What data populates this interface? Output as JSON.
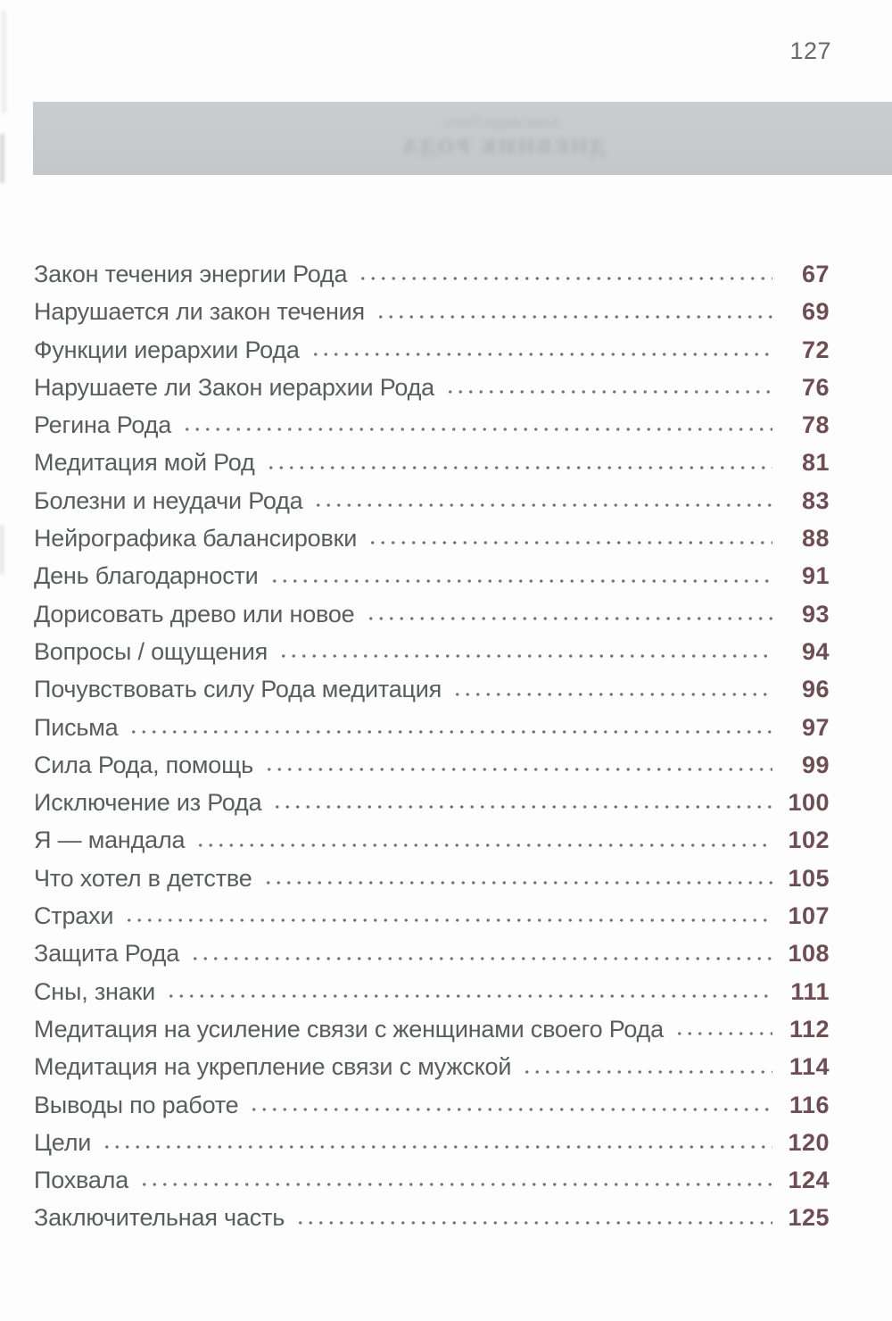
{
  "page": {
    "header_page_number": "127"
  },
  "banner": {
    "ghost_line1": "Александра Гонта",
    "ghost_line2": "ДНЕВНИК РОДА"
  },
  "toc": {
    "entries": [
      {
        "title": "Закон течения энергии Рода",
        "page": "67"
      },
      {
        "title": "Нарушается ли закон течения",
        "page": "69"
      },
      {
        "title": "Функции иерархии Рода",
        "page": "72"
      },
      {
        "title": "Нарушаете ли Закон иерархии Рода",
        "page": "76"
      },
      {
        "title": "Регина Рода",
        "page": "78"
      },
      {
        "title": "Медитация мой Род",
        "page": "81"
      },
      {
        "title": "Болезни и неудачи Рода",
        "page": "83"
      },
      {
        "title": "Нейрографика балансировки",
        "page": "88"
      },
      {
        "title": "День благодарности",
        "page": "91"
      },
      {
        "title": "Дорисовать древо или новое",
        "page": "93"
      },
      {
        "title": "Вопросы / ощущения",
        "page": "94"
      },
      {
        "title": "Почувствовать силу Рода медитация",
        "page": "96"
      },
      {
        "title": "Письма",
        "page": "97"
      },
      {
        "title": "Сила Рода, помощь",
        "page": "99"
      },
      {
        "title": "Исключение из Рода",
        "page": "100"
      },
      {
        "title": "Я — мандала",
        "page": "102"
      },
      {
        "title": "Что хотел в детстве",
        "page": "105"
      },
      {
        "title": "Страхи",
        "page": "107"
      },
      {
        "title": "Защита Рода",
        "page": "108"
      },
      {
        "title": "Сны, знаки",
        "page": "111"
      },
      {
        "title": "Медитация на усиление связи с женщинами своего Рода",
        "page": "112"
      },
      {
        "title": "Медитация на укрепление связи с мужской",
        "page": "114"
      },
      {
        "title": "Выводы по работе",
        "page": "116"
      },
      {
        "title": "Цели",
        "page": "120"
      },
      {
        "title": "Похвала",
        "page": "124"
      },
      {
        "title": "Заключительная часть",
        "page": "125"
      }
    ]
  },
  "colors": {
    "entry_text": "#575e5b",
    "page_number": "#6e4e55",
    "leader_dots": "#70756f",
    "header_number": "#696969",
    "banner": "#c7cbcd"
  }
}
